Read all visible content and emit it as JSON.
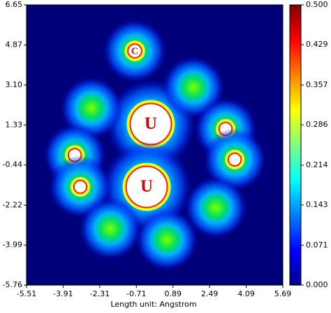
{
  "chart_data": {
    "type": "heatmap",
    "colormap": "jet",
    "x": [
      -0.08,
      -0.26,
      -0.78,
      1.78,
      -2.67,
      3.19,
      3.59,
      -3.4,
      -3.16,
      2.76,
      -1.85,
      0.62
    ],
    "y": [
      1.37,
      -1.41,
      4.61,
      3.0,
      2.08,
      1.16,
      -0.2,
      0.0,
      -1.41,
      -2.33,
      -3.26,
      -3.75
    ],
    "core_radius": [
      0.9,
      0.9,
      0.3,
      0,
      0,
      0.28,
      0.28,
      0.28,
      0.28,
      0,
      0,
      0
    ],
    "point_labels": [
      "U",
      "U",
      "C",
      null,
      null,
      null,
      null,
      null,
      null,
      null,
      null,
      null
    ],
    "xlim": [
      -5.51,
      5.69
    ],
    "ylim": [
      -5.76,
      6.65
    ],
    "xticks": [
      -5.51,
      -3.91,
      -2.31,
      -0.71,
      0.89,
      2.49,
      4.09,
      5.69
    ],
    "yticks": [
      6.65,
      4.87,
      {
        "value": 3.1,
        "label": "3.10"
      },
      1.33,
      -0.44,
      -2.22,
      -3.99,
      -5.76
    ],
    "xlabel": "Length unit: Angstrom",
    "clim": [
      0,
      0.5
    ],
    "cticks": [
      {
        "value": 0,
        "label": "0.000"
      },
      0.071,
      0.143,
      0.214,
      0.286,
      0.357,
      0.429,
      {
        "value": 0.5,
        "label": "0.500"
      }
    ]
  }
}
